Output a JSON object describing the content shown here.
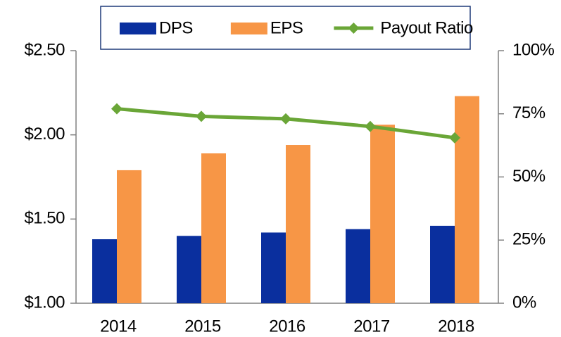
{
  "chart_data": {
    "type": "bar",
    "categories": [
      "2014",
      "2015",
      "2016",
      "2017",
      "2018"
    ],
    "series": [
      {
        "name": "DPS",
        "color": "#0a2f9e",
        "type": "bar",
        "values": [
          1.38,
          1.4,
          1.42,
          1.44,
          1.46
        ]
      },
      {
        "name": "EPS",
        "color": "#f79646",
        "type": "bar",
        "values": [
          1.79,
          1.89,
          1.94,
          2.06,
          2.23
        ]
      },
      {
        "name": "Payout Ratio",
        "color": "#6aa637",
        "type": "line",
        "axis": "y2",
        "values": [
          77,
          74,
          73,
          70,
          65.5
        ]
      }
    ],
    "ylim": [
      1.0,
      2.5
    ],
    "yticks": [
      {
        "value": 1.0,
        "label": "$1.00"
      },
      {
        "value": 1.5,
        "label": "$1.50"
      },
      {
        "value": 2.0,
        "label": "$2.00"
      },
      {
        "value": 2.5,
        "label": "$2.50"
      }
    ],
    "y2lim": [
      0,
      100
    ],
    "y2ticks": [
      {
        "value": 0,
        "label": "0%"
      },
      {
        "value": 25,
        "label": "25%"
      },
      {
        "value": 50,
        "label": "50%"
      },
      {
        "value": 75,
        "label": "75%"
      },
      {
        "value": 100,
        "label": "100%"
      }
    ],
    "grid": false,
    "legend": "top"
  }
}
